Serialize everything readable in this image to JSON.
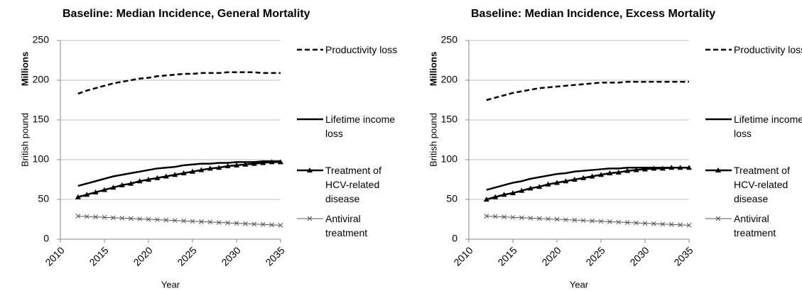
{
  "chart_data": [
    {
      "type": "line",
      "title": "Baseline: Median Incidence, General Mortality",
      "y_unit_label": "Millions",
      "y_label": "British pound",
      "x_label": "Year",
      "x": [
        2012,
        2013,
        2014,
        2015,
        2016,
        2017,
        2018,
        2019,
        2020,
        2021,
        2022,
        2023,
        2024,
        2025,
        2026,
        2027,
        2028,
        2029,
        2030,
        2031,
        2032,
        2033,
        2034,
        2035
      ],
      "xlim": [
        2010,
        2035
      ],
      "xticks": [
        2010,
        2015,
        2020,
        2025,
        2030,
        2035
      ],
      "ylim": [
        0,
        250
      ],
      "yticks": [
        0,
        50,
        100,
        150,
        200,
        250
      ],
      "grid": true,
      "legend": "right",
      "series": [
        {
          "name": "Productivity loss",
          "color": "#000000",
          "style": "dashed",
          "values": [
            183,
            187,
            190,
            193,
            196,
            198,
            200,
            202,
            203,
            205,
            206,
            207,
            208,
            208,
            209,
            209,
            209,
            210,
            210,
            210,
            210,
            209,
            209,
            209
          ]
        },
        {
          "name": "Lifetime income loss",
          "color": "#000000",
          "style": "solid",
          "values": [
            67,
            70,
            73,
            76,
            79,
            81,
            83,
            85,
            87,
            89,
            90,
            91,
            93,
            94,
            95,
            95,
            96,
            96,
            97,
            97,
            97,
            98,
            98,
            98
          ]
        },
        {
          "name": "Treatment of HCV-related disease",
          "color": "#000000",
          "style": "solid",
          "marker": "triangle",
          "values": [
            53,
            56,
            59,
            62,
            65,
            68,
            70,
            73,
            75,
            77,
            79,
            81,
            83,
            85,
            87,
            89,
            90,
            92,
            93,
            94,
            95,
            96,
            97,
            97
          ]
        },
        {
          "name": "Antiviral treatment",
          "color": "#555555",
          "style": "solid",
          "marker": "x",
          "values": [
            29,
            28.5,
            28,
            27.5,
            27,
            26.5,
            26,
            25.5,
            25,
            24.5,
            24,
            23.5,
            23,
            22.5,
            22,
            21.5,
            21,
            20.5,
            20,
            19.5,
            19,
            18.5,
            18,
            17.5
          ]
        }
      ]
    },
    {
      "type": "line",
      "title": "Baseline: Median Incidence, Excess Mortality",
      "y_unit_label": "Millions",
      "y_label": "British pound",
      "x_label": "Year",
      "x": [
        2012,
        2013,
        2014,
        2015,
        2016,
        2017,
        2018,
        2019,
        2020,
        2021,
        2022,
        2023,
        2024,
        2025,
        2026,
        2027,
        2028,
        2029,
        2030,
        2031,
        2032,
        2033,
        2034,
        2035
      ],
      "xlim": [
        2010,
        2035
      ],
      "xticks": [
        2010,
        2015,
        2020,
        2025,
        2030,
        2035
      ],
      "ylim": [
        0,
        250
      ],
      "yticks": [
        0,
        50,
        100,
        150,
        200,
        250
      ],
      "grid": true,
      "legend": "right",
      "series": [
        {
          "name": "Productivity loss",
          "color": "#000000",
          "style": "dashed",
          "values": [
            175,
            178,
            181,
            184,
            186,
            188,
            190,
            191,
            192,
            193,
            194,
            195,
            196,
            197,
            197,
            197,
            198,
            198,
            198,
            198,
            198,
            198,
            198,
            198
          ]
        },
        {
          "name": "Lifetime income loss",
          "color": "#000000",
          "style": "solid",
          "values": [
            62,
            65,
            68,
            71,
            73,
            76,
            78,
            80,
            82,
            83,
            85,
            86,
            87,
            88,
            89,
            89,
            90,
            90,
            90,
            90,
            90,
            90,
            90,
            90
          ]
        },
        {
          "name": "Treatment of HCV-related disease",
          "color": "#000000",
          "style": "solid",
          "marker": "triangle",
          "values": [
            50,
            53,
            56,
            58,
            61,
            64,
            66,
            69,
            71,
            73,
            75,
            77,
            79,
            81,
            83,
            84,
            86,
            87,
            88,
            89,
            89,
            90,
            90,
            90
          ]
        },
        {
          "name": "Antiviral treatment",
          "color": "#555555",
          "style": "solid",
          "marker": "x",
          "values": [
            29,
            28.5,
            28,
            27.5,
            27,
            26.5,
            26,
            25.5,
            25,
            24.5,
            24,
            23.5,
            23,
            22.5,
            22,
            21.5,
            21,
            20.5,
            20,
            19.5,
            19,
            18.5,
            18,
            17.5
          ]
        }
      ]
    }
  ]
}
